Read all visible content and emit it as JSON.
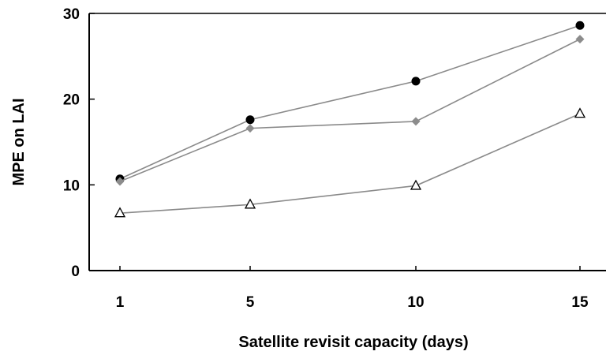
{
  "chart_data": {
    "type": "line",
    "title": "",
    "xlabel": "Satellite revisit capacity (days)",
    "ylabel": "MPE on LAI",
    "x": [
      1,
      5,
      10,
      15
    ],
    "x_ticks": [
      "1",
      "5",
      "10",
      "15"
    ],
    "y_ticks": [
      "0",
      "10",
      "20",
      "30"
    ],
    "ylim": [
      0,
      30
    ],
    "grid": false,
    "legend": "none",
    "series": [
      {
        "marker": "circle-filled",
        "color": "#000000",
        "line_color": "#8a8a8a",
        "values": [
          10.7,
          17.6,
          22.1,
          28.6
        ]
      },
      {
        "marker": "diamond",
        "color": "#8c8c8c",
        "line_color": "#8a8a8a",
        "values": [
          10.4,
          16.6,
          17.4,
          27.0
        ]
      },
      {
        "marker": "triangle-open",
        "color": "#000000",
        "line_color": "#8a8a8a",
        "values": [
          6.7,
          7.7,
          9.9,
          18.3
        ]
      }
    ]
  }
}
